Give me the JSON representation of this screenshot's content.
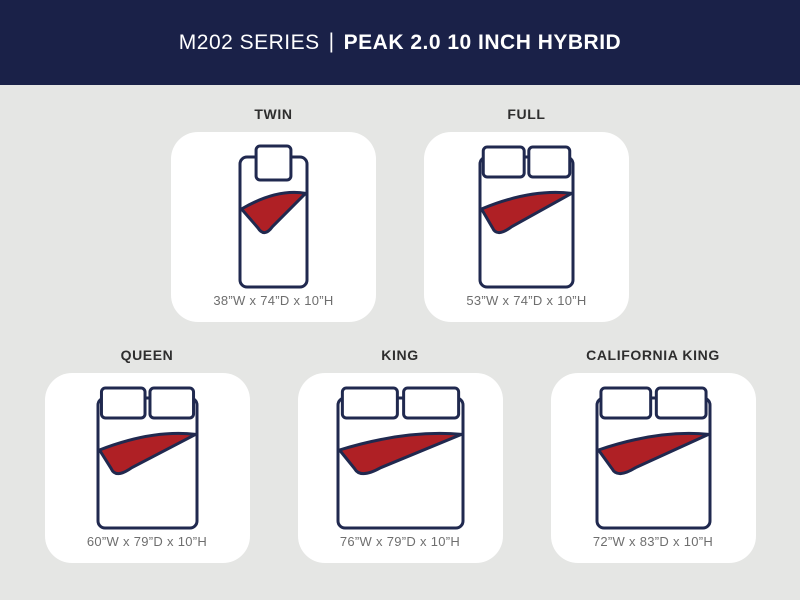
{
  "header": {
    "series": "M202 SERIES",
    "separator": "|",
    "model": "PEAK 2.0 10 INCH HYBRID"
  },
  "colors": {
    "header_bg": "#1A2148",
    "page_bg": "#E5E6E4",
    "card_bg": "#FFFFFF",
    "outline_navy": "#20294F",
    "blanket_red": "#AF2025",
    "title_text": "#2E2E2E",
    "dims_text": "#6E6E6E"
  },
  "sizes": [
    {
      "id": "twin",
      "label": "TWIN",
      "dims": "38”W x 74”D x 10”H",
      "width_in": 38,
      "depth_in": 74,
      "pillows": 1
    },
    {
      "id": "full",
      "label": "FULL",
      "dims": "53”W x 74”D x 10”H",
      "width_in": 53,
      "depth_in": 74,
      "pillows": 2
    },
    {
      "id": "queen",
      "label": "QUEEN",
      "dims": "60”W x 79”D x 10”H",
      "width_in": 60,
      "depth_in": 79,
      "pillows": 2
    },
    {
      "id": "king",
      "label": "KING",
      "dims": "76”W x 79”D x 10”H",
      "width_in": 76,
      "depth_in": 79,
      "pillows": 2
    },
    {
      "id": "california-king",
      "label": "CALIFORNIA KING",
      "dims": "72”W x 83”D x 10”H",
      "width_in": 72,
      "depth_in": 83,
      "pillows": 2
    }
  ]
}
